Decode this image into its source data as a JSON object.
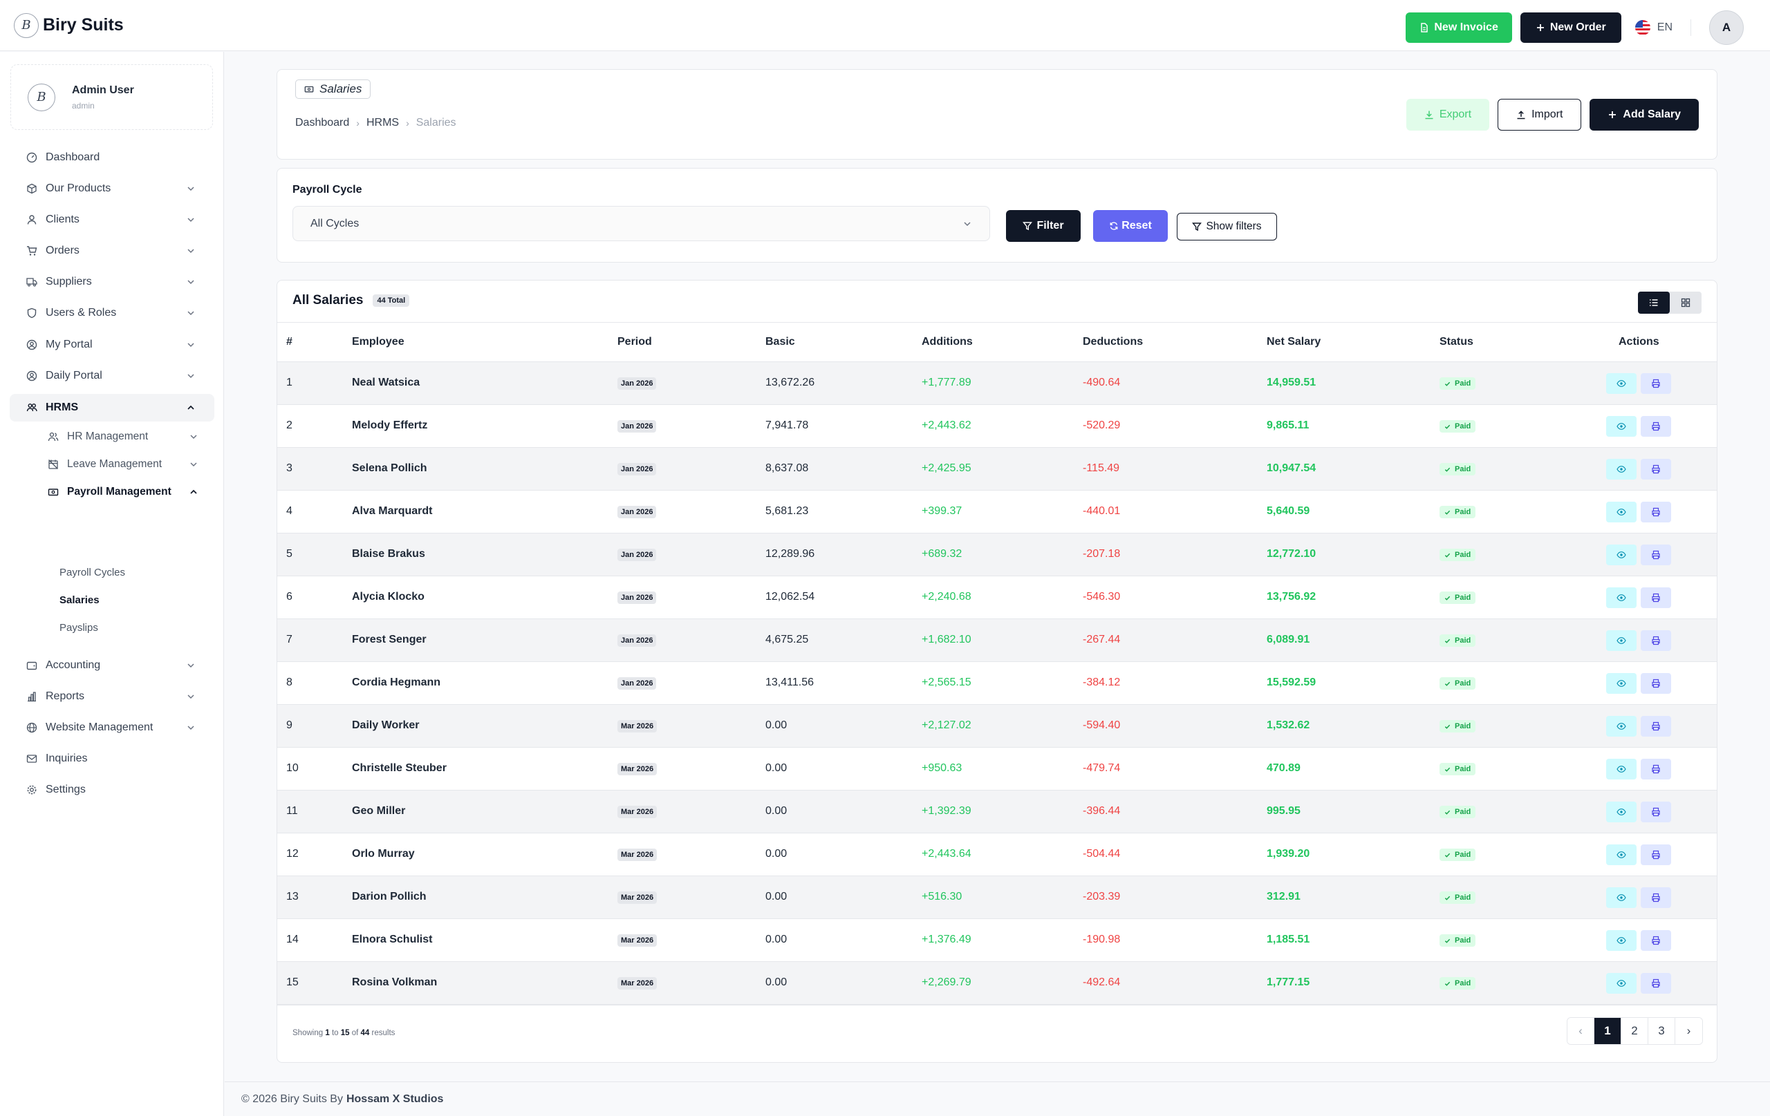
{
  "app": {
    "brand_letter": "B",
    "brand_name": "Biry Suits"
  },
  "topbar": {
    "new_invoice": "New Invoice",
    "new_order": "New Order",
    "lang": "EN",
    "avatar_letter": "A"
  },
  "user": {
    "logo_letter": "B",
    "name": "Admin User",
    "role": "admin"
  },
  "nav": {
    "dashboard": "Dashboard",
    "our_products": "Our Products",
    "clients": "Clients",
    "orders": "Orders",
    "suppliers": "Suppliers",
    "users_roles": "Users & Roles",
    "my_portal": "My Portal",
    "daily_portal": "Daily Portal",
    "hrms": "HRMS",
    "hr_management": "HR Management",
    "leave_management": "Leave Management",
    "payroll_management": "Payroll Management",
    "payroll_cycles": "Payroll Cycles",
    "salaries": "Salaries",
    "payslips": "Payslips",
    "accounting": "Accounting",
    "reports": "Reports",
    "website_management": "Website Management",
    "inquiries": "Inquiries",
    "settings": "Settings"
  },
  "page": {
    "title": "Salaries",
    "breadcrumb": [
      "Dashboard",
      "HRMS",
      "Salaries"
    ],
    "export": "Export",
    "import": "Import",
    "add": "Add Salary"
  },
  "filters": {
    "label": "Payroll Cycle",
    "selected": "All Cycles",
    "filter_btn": "Filter",
    "reset_btn": "Reset",
    "show_btn": "Show filters"
  },
  "table": {
    "title": "All Salaries",
    "total_badge": "44 Total",
    "columns": [
      "#",
      "Employee",
      "Period",
      "Basic",
      "Additions",
      "Deductions",
      "Net Salary",
      "Status",
      "Actions"
    ],
    "rows": [
      {
        "n": "1",
        "employee": "Neal Watsica",
        "period": "Jan 2026",
        "basic": "13,672.26",
        "additions": "+1,777.89",
        "deductions": "-490.64",
        "net": "14,959.51",
        "status": "Paid"
      },
      {
        "n": "2",
        "employee": "Melody Effertz",
        "period": "Jan 2026",
        "basic": "7,941.78",
        "additions": "+2,443.62",
        "deductions": "-520.29",
        "net": "9,865.11",
        "status": "Paid"
      },
      {
        "n": "3",
        "employee": "Selena Pollich",
        "period": "Jan 2026",
        "basic": "8,637.08",
        "additions": "+2,425.95",
        "deductions": "-115.49",
        "net": "10,947.54",
        "status": "Paid"
      },
      {
        "n": "4",
        "employee": "Alva Marquardt",
        "period": "Jan 2026",
        "basic": "5,681.23",
        "additions": "+399.37",
        "deductions": "-440.01",
        "net": "5,640.59",
        "status": "Paid"
      },
      {
        "n": "5",
        "employee": "Blaise Brakus",
        "period": "Jan 2026",
        "basic": "12,289.96",
        "additions": "+689.32",
        "deductions": "-207.18",
        "net": "12,772.10",
        "status": "Paid"
      },
      {
        "n": "6",
        "employee": "Alycia Klocko",
        "period": "Jan 2026",
        "basic": "12,062.54",
        "additions": "+2,240.68",
        "deductions": "-546.30",
        "net": "13,756.92",
        "status": "Paid"
      },
      {
        "n": "7",
        "employee": "Forest Senger",
        "period": "Jan 2026",
        "basic": "4,675.25",
        "additions": "+1,682.10",
        "deductions": "-267.44",
        "net": "6,089.91",
        "status": "Paid"
      },
      {
        "n": "8",
        "employee": "Cordia Hegmann",
        "period": "Jan 2026",
        "basic": "13,411.56",
        "additions": "+2,565.15",
        "deductions": "-384.12",
        "net": "15,592.59",
        "status": "Paid"
      },
      {
        "n": "9",
        "employee": "Daily Worker",
        "period": "Mar 2026",
        "basic": "0.00",
        "additions": "+2,127.02",
        "deductions": "-594.40",
        "net": "1,532.62",
        "status": "Paid"
      },
      {
        "n": "10",
        "employee": "Christelle Steuber",
        "period": "Mar 2026",
        "basic": "0.00",
        "additions": "+950.63",
        "deductions": "-479.74",
        "net": "470.89",
        "status": "Paid"
      },
      {
        "n": "11",
        "employee": "Geo Miller",
        "period": "Mar 2026",
        "basic": "0.00",
        "additions": "+1,392.39",
        "deductions": "-396.44",
        "net": "995.95",
        "status": "Paid"
      },
      {
        "n": "12",
        "employee": "Orlo Murray",
        "period": "Mar 2026",
        "basic": "0.00",
        "additions": "+2,443.64",
        "deductions": "-504.44",
        "net": "1,939.20",
        "status": "Paid"
      },
      {
        "n": "13",
        "employee": "Darion Pollich",
        "period": "Mar 2026",
        "basic": "0.00",
        "additions": "+516.30",
        "deductions": "-203.39",
        "net": "312.91",
        "status": "Paid"
      },
      {
        "n": "14",
        "employee": "Elnora Schulist",
        "period": "Mar 2026",
        "basic": "0.00",
        "additions": "+1,376.49",
        "deductions": "-190.98",
        "net": "1,185.51",
        "status": "Paid"
      },
      {
        "n": "15",
        "employee": "Rosina Volkman",
        "period": "Mar 2026",
        "basic": "0.00",
        "additions": "+2,269.79",
        "deductions": "-492.64",
        "net": "1,777.15",
        "status": "Paid"
      }
    ],
    "showing": {
      "prefix": "Showing",
      "from": "1",
      "to_word": "to",
      "to": "15",
      "of_word": "of",
      "total": "44",
      "suffix": "results"
    },
    "pagination": {
      "prev": "‹",
      "pages": [
        "1",
        "2",
        "3"
      ],
      "current": "1",
      "next": "›"
    }
  },
  "footer": {
    "text": "© 2026 Biry Suits By",
    "studio": "Hossam X Studios"
  },
  "colors": {
    "primary": "#111827",
    "green": "#22c55e",
    "indigo": "#6366f1",
    "red": "#ef4444"
  },
  "icons": {
    "dashboard": "gauge-icon",
    "products": "box-icon",
    "clients": "user-icon",
    "orders": "cart-icon",
    "suppliers": "truck-icon",
    "users_roles": "shield-icon",
    "my_portal": "user-circle-icon",
    "daily_portal": "user-circle-icon",
    "hrms": "users-icon",
    "accounting": "wallet-icon",
    "reports": "bar-chart-icon",
    "website": "globe-icon",
    "inquiries": "mail-icon",
    "settings": "gear-icon",
    "view": "eye-icon",
    "print": "printer-icon"
  }
}
